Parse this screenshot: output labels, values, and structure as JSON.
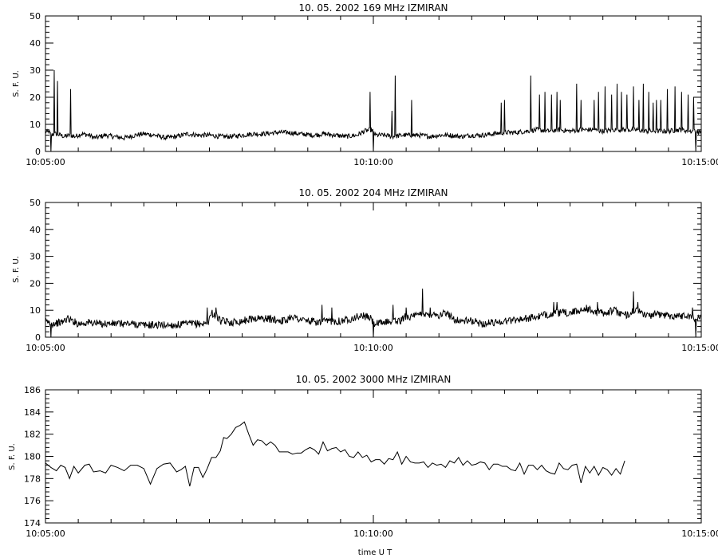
{
  "page": {
    "xlabel_bottom": "time  U T"
  },
  "chart_data": [
    {
      "type": "line",
      "title": "10.  05.  2002    169  MHz    IZMIRAN",
      "ylabel": "S.  F.  U.",
      "ylim": [
        0,
        50
      ],
      "yticks": [
        0,
        10,
        20,
        30,
        40,
        50
      ],
      "xlim": [
        "10:05:00",
        "10:15:00"
      ],
      "xticks": [
        "10:05:00",
        "10:10:00",
        "10:15:00"
      ],
      "baseline": [
        [
          0,
          7.5
        ],
        [
          2,
          7
        ],
        [
          3,
          7.5
        ],
        [
          5,
          6
        ],
        [
          9,
          6.5
        ],
        [
          14,
          6
        ],
        [
          17,
          5.5
        ],
        [
          22,
          6
        ],
        [
          27,
          5.5
        ],
        [
          33,
          6.5
        ],
        [
          40,
          6
        ],
        [
          45,
          5
        ],
        [
          55,
          6
        ],
        [
          62,
          5.5
        ],
        [
          72,
          5
        ],
        [
          82,
          6
        ],
        [
          90,
          6.5
        ],
        [
          100,
          6
        ],
        [
          110,
          5
        ],
        [
          120,
          5.5
        ],
        [
          130,
          6.5
        ],
        [
          140,
          6
        ],
        [
          150,
          6
        ],
        [
          160,
          5.5
        ],
        [
          170,
          5.5
        ],
        [
          180,
          6
        ],
        [
          190,
          6.5
        ],
        [
          200,
          6.5
        ],
        [
          212,
          7
        ],
        [
          222,
          7
        ],
        [
          232,
          6.5
        ],
        [
          245,
          6
        ],
        [
          255,
          6.5
        ],
        [
          265,
          6
        ],
        [
          275,
          5.5
        ],
        [
          285,
          6
        ],
        [
          292,
          7.5
        ],
        [
          298,
          8
        ],
        [
          300,
          7.5
        ],
        [
          302,
          6
        ],
        [
          310,
          6
        ],
        [
          318,
          5.5
        ],
        [
          327,
          6
        ],
        [
          335,
          6
        ],
        [
          342,
          6
        ],
        [
          352,
          5.5
        ],
        [
          360,
          6
        ],
        [
          370,
          6
        ],
        [
          380,
          5.5
        ],
        [
          390,
          6
        ],
        [
          400,
          6
        ],
        [
          410,
          6.5
        ],
        [
          420,
          7
        ],
        [
          430,
          7
        ],
        [
          440,
          7.5
        ],
        [
          450,
          8
        ],
        [
          460,
          7.5
        ],
        [
          470,
          8
        ],
        [
          480,
          7.5
        ],
        [
          490,
          8
        ],
        [
          500,
          8
        ],
        [
          510,
          7.5
        ],
        [
          520,
          8
        ],
        [
          530,
          8
        ],
        [
          540,
          8
        ],
        [
          550,
          7.5
        ],
        [
          560,
          7.5
        ],
        [
          570,
          7.5
        ],
        [
          580,
          8
        ],
        [
          590,
          7.5
        ],
        [
          596,
          7.5
        ],
        [
          598,
          7
        ],
        [
          600,
          7.5
        ]
      ],
      "spikes": [
        [
          8,
          30
        ],
        [
          11,
          26
        ],
        [
          23,
          23
        ],
        [
          297,
          22
        ],
        [
          317,
          15
        ],
        [
          320,
          28
        ],
        [
          335,
          19
        ],
        [
          417,
          18
        ],
        [
          420,
          19
        ],
        [
          444,
          28
        ],
        [
          452,
          21
        ],
        [
          457,
          22
        ],
        [
          463,
          21
        ],
        [
          468,
          22
        ],
        [
          471,
          19
        ],
        [
          486,
          25
        ],
        [
          490,
          19
        ],
        [
          502,
          19
        ],
        [
          506,
          22
        ],
        [
          512,
          24
        ],
        [
          518,
          21
        ],
        [
          523,
          25
        ],
        [
          527,
          22
        ],
        [
          532,
          21
        ],
        [
          538,
          24
        ],
        [
          543,
          19
        ],
        [
          547,
          25
        ],
        [
          552,
          22
        ],
        [
          556,
          18
        ],
        [
          559,
          19
        ],
        [
          563,
          19
        ],
        [
          569,
          23
        ],
        [
          576,
          24
        ],
        [
          582,
          22
        ],
        [
          588,
          21
        ],
        [
          593,
          20
        ]
      ],
      "dips": [
        [
          5,
          0
        ],
        [
          300,
          0
        ],
        [
          595,
          0
        ]
      ]
    },
    {
      "type": "line",
      "title": "10.  05.  2002    204  MHz    IZMIRAN",
      "ylabel": "S.  F.  U.",
      "ylim": [
        0,
        50
      ],
      "yticks": [
        0,
        10,
        20,
        30,
        40,
        50
      ],
      "xlim": [
        "10:05:00",
        "10:15:00"
      ],
      "xticks": [
        "10:05:00",
        "10:10:00",
        "10:15:00"
      ],
      "baseline": [
        [
          0,
          6
        ],
        [
          5,
          5
        ],
        [
          15,
          5.5
        ],
        [
          20,
          7
        ],
        [
          25,
          6
        ],
        [
          30,
          5
        ],
        [
          40,
          5.5
        ],
        [
          50,
          5
        ],
        [
          60,
          5
        ],
        [
          70,
          5
        ],
        [
          80,
          5
        ],
        [
          90,
          4.5
        ],
        [
          100,
          4.5
        ],
        [
          110,
          4.5
        ],
        [
          120,
          4.5
        ],
        [
          130,
          5
        ],
        [
          140,
          5
        ],
        [
          148,
          5
        ],
        [
          150,
          7
        ],
        [
          152,
          9
        ],
        [
          156,
          8
        ],
        [
          160,
          6
        ],
        [
          170,
          5.5
        ],
        [
          180,
          6
        ],
        [
          190,
          7
        ],
        [
          200,
          7
        ],
        [
          210,
          6.5
        ],
        [
          220,
          6
        ],
        [
          225,
          8
        ],
        [
          230,
          7
        ],
        [
          240,
          6
        ],
        [
          250,
          5.5
        ],
        [
          260,
          6
        ],
        [
          270,
          6
        ],
        [
          280,
          7
        ],
        [
          290,
          8
        ],
        [
          298,
          7
        ],
        [
          300,
          5
        ],
        [
          305,
          5
        ],
        [
          315,
          6
        ],
        [
          325,
          6
        ],
        [
          330,
          8
        ],
        [
          335,
          7.5
        ],
        [
          340,
          8
        ],
        [
          345,
          9
        ],
        [
          350,
          8
        ],
        [
          355,
          9
        ],
        [
          360,
          8
        ],
        [
          365,
          9
        ],
        [
          370,
          8
        ],
        [
          375,
          6.5
        ],
        [
          380,
          6
        ],
        [
          390,
          6
        ],
        [
          400,
          5
        ],
        [
          410,
          5.5
        ],
        [
          420,
          6
        ],
        [
          430,
          6.5
        ],
        [
          440,
          7
        ],
        [
          450,
          7.5
        ],
        [
          460,
          8.5
        ],
        [
          470,
          9
        ],
        [
          480,
          9
        ],
        [
          490,
          10
        ],
        [
          495,
          11
        ],
        [
          500,
          9.5
        ],
        [
          510,
          9
        ],
        [
          520,
          10
        ],
        [
          525,
          9
        ],
        [
          530,
          8
        ],
        [
          535,
          9
        ],
        [
          540,
          10
        ],
        [
          545,
          9
        ],
        [
          550,
          8
        ],
        [
          560,
          8.5
        ],
        [
          570,
          8
        ],
        [
          580,
          8
        ],
        [
          590,
          8
        ],
        [
          595,
          6
        ],
        [
          598,
          8
        ],
        [
          600,
          8.5
        ]
      ],
      "spikes": [
        [
          148,
          11
        ],
        [
          156,
          11
        ],
        [
          253,
          12
        ],
        [
          262,
          11
        ],
        [
          318,
          12
        ],
        [
          330,
          11
        ],
        [
          345,
          18
        ],
        [
          352,
          11
        ],
        [
          465,
          13
        ],
        [
          468,
          13
        ],
        [
          495,
          12
        ],
        [
          505,
          13
        ],
        [
          538,
          17
        ],
        [
          542,
          13
        ],
        [
          592,
          11
        ]
      ],
      "dips": [
        [
          5,
          0
        ],
        [
          300,
          0
        ],
        [
          595,
          0
        ]
      ]
    },
    {
      "type": "line",
      "title": "10.  05.  2002    3000  MHz    IZMIRAN",
      "ylabel": "S.  F.  U.",
      "ylim": [
        174,
        186
      ],
      "yticks": [
        174,
        176,
        178,
        180,
        182,
        184,
        186
      ],
      "xlim": [
        "10:05:00",
        "10:15:00"
      ],
      "xticks": [
        "10:05:00",
        "10:10:00",
        "10:15:00"
      ],
      "baseline": [
        [
          0,
          179.4
        ],
        [
          5,
          179
        ],
        [
          10,
          178.7
        ],
        [
          14,
          179.2
        ],
        [
          18,
          179
        ],
        [
          22,
          178
        ],
        [
          26,
          179.1
        ],
        [
          30,
          178.5
        ],
        [
          36,
          179.2
        ],
        [
          40,
          179.3
        ],
        [
          44,
          178.6
        ],
        [
          50,
          178.7
        ],
        [
          55,
          178.5
        ],
        [
          60,
          179.2
        ],
        [
          66,
          179
        ],
        [
          72,
          178.7
        ],
        [
          78,
          179.2
        ],
        [
          84,
          179.2
        ],
        [
          90,
          178.9
        ],
        [
          96,
          177.5
        ],
        [
          102,
          178.9
        ],
        [
          108,
          179.3
        ],
        [
          114,
          179.4
        ],
        [
          120,
          178.6
        ],
        [
          124,
          178.8
        ],
        [
          128,
          179.1
        ],
        [
          132,
          177.3
        ],
        [
          136,
          179
        ],
        [
          140,
          179
        ],
        [
          144,
          178.1
        ],
        [
          148,
          178.9
        ],
        [
          152,
          179.9
        ],
        [
          156,
          179.9
        ],
        [
          160,
          180.5
        ],
        [
          163,
          181.7
        ],
        [
          166,
          181.6
        ],
        [
          170,
          182
        ],
        [
          174,
          182.6
        ],
        [
          178,
          182.8
        ],
        [
          182,
          183.1
        ],
        [
          186,
          182
        ],
        [
          190,
          181
        ],
        [
          194,
          181.5
        ],
        [
          198,
          181.4
        ],
        [
          202,
          181
        ],
        [
          206,
          181.3
        ],
        [
          210,
          181
        ],
        [
          214,
          180.4
        ],
        [
          218,
          180.4
        ],
        [
          222,
          180.4
        ],
        [
          226,
          180.2
        ],
        [
          230,
          180.3
        ],
        [
          234,
          180.3
        ],
        [
          238,
          180.6
        ],
        [
          242,
          180.8
        ],
        [
          246,
          180.6
        ],
        [
          250,
          180.2
        ],
        [
          254,
          181.3
        ],
        [
          258,
          180.5
        ],
        [
          262,
          180.7
        ],
        [
          266,
          180.8
        ],
        [
          270,
          180.4
        ],
        [
          274,
          180.6
        ],
        [
          278,
          180
        ],
        [
          282,
          179.9
        ],
        [
          286,
          180.4
        ],
        [
          290,
          179.9
        ],
        [
          294,
          180.1
        ],
        [
          298,
          179.5
        ],
        [
          302,
          179.7
        ],
        [
          306,
          179.7
        ],
        [
          310,
          179.3
        ],
        [
          314,
          179.8
        ],
        [
          318,
          179.7
        ],
        [
          322,
          180.4
        ],
        [
          326,
          179.3
        ],
        [
          330,
          180
        ],
        [
          334,
          179.5
        ],
        [
          338,
          179.4
        ],
        [
          342,
          179.4
        ],
        [
          346,
          179.5
        ],
        [
          350,
          179
        ],
        [
          354,
          179.4
        ],
        [
          358,
          179.2
        ],
        [
          362,
          179.3
        ],
        [
          366,
          179
        ],
        [
          370,
          179.6
        ],
        [
          374,
          179.4
        ],
        [
          378,
          179.9
        ],
        [
          382,
          179.2
        ],
        [
          386,
          179.6
        ],
        [
          390,
          179.2
        ],
        [
          394,
          179.3
        ],
        [
          398,
          179.5
        ],
        [
          402,
          179.4
        ],
        [
          406,
          178.8
        ],
        [
          410,
          179.3
        ],
        [
          414,
          179.3
        ],
        [
          418,
          179.1
        ],
        [
          422,
          179.1
        ],
        [
          426,
          178.8
        ],
        [
          430,
          178.7
        ],
        [
          434,
          179.4
        ],
        [
          438,
          178.4
        ],
        [
          442,
          179.2
        ],
        [
          446,
          179.2
        ],
        [
          450,
          178.8
        ],
        [
          454,
          179.2
        ],
        [
          458,
          178.7
        ],
        [
          462,
          178.5
        ],
        [
          466,
          178.4
        ],
        [
          470,
          179.4
        ],
        [
          474,
          178.9
        ],
        [
          478,
          178.8
        ],
        [
          482,
          179.2
        ],
        [
          486,
          179.3
        ],
        [
          490,
          177.6
        ],
        [
          494,
          179.1
        ],
        [
          498,
          178.5
        ],
        [
          502,
          179.1
        ],
        [
          506,
          178.3
        ],
        [
          510,
          179
        ],
        [
          514,
          178.8
        ],
        [
          518,
          178.3
        ],
        [
          522,
          178.9
        ],
        [
          526,
          178.4
        ],
        [
          530,
          179.6
        ]
      ],
      "spikes": [],
      "dips": []
    }
  ]
}
